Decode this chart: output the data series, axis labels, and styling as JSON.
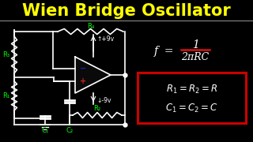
{
  "title": "Wien Bridge Oscillator",
  "title_color": "#FFFF00",
  "bg_color": "#000000",
  "circuit_color": "#FFFFFF",
  "label_color": "#00FF00",
  "formula_color": "#FFFFFF",
  "box_border_color": "#CC0000",
  "plus_color": "#CC2222",
  "minus_color": "#2222CC",
  "r4_label": "R₄",
  "r3_label": "R₃",
  "r1_label": "R₁",
  "r2_label": "R₂",
  "c1_label": "C₁",
  "c2_label": "C₂",
  "vpos_label": "↑+9v",
  "vneg_label": "↓-9v",
  "sep_line_color": "#888888",
  "divider_color": "#CC0000"
}
